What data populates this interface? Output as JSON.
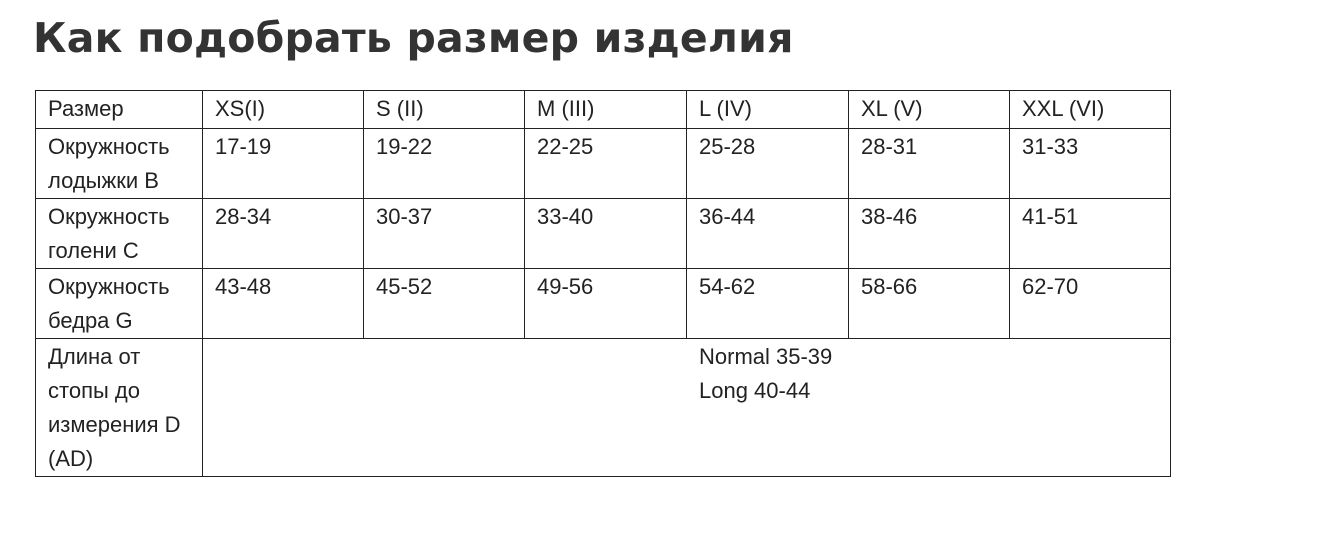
{
  "header": {
    "title": "Как подобрать размер изделия"
  },
  "table": {
    "header": [
      "Размер",
      "XS(I)",
      "S (II)",
      "M (III)",
      "L (IV)",
      "XL (V)",
      "XXL (VI)"
    ],
    "rows": [
      [
        "Окружность лодыжки B",
        "17-19",
        "19-22",
        "22-25",
        "25-28",
        "28-31",
        "31-33"
      ],
      [
        "Окружность голени C",
        "28-34",
        "30-37",
        "33-40",
        "36-44",
        "38-46",
        "41-51"
      ],
      [
        "Окружность бедра G",
        "43-48",
        "45-52",
        "49-56",
        "54-62",
        "58-66",
        "62-70"
      ]
    ],
    "last_row": {
      "label": "Длина от стопы до измерения D (AD)",
      "lines": [
        "Normal 35-39",
        "Long 40-44"
      ]
    }
  }
}
